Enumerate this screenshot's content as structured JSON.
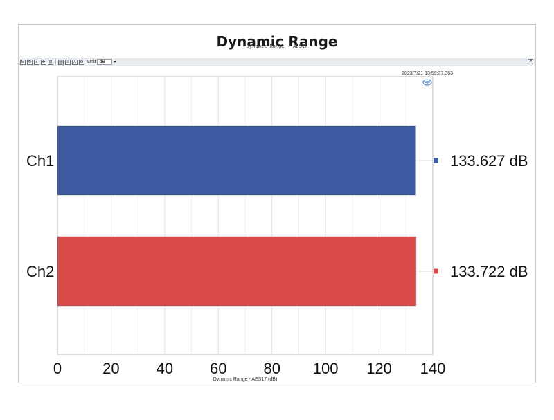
{
  "panel": {
    "title": "Dynamic Range"
  },
  "toolbar": {
    "unit_label": "Unit",
    "unit_value": "dB"
  },
  "chart_data": {
    "type": "bar",
    "orientation": "horizontal",
    "title": "Dynamic Range - AES17",
    "timestamp": "2023/7/21 13:59:37.363",
    "categories": [
      "Ch1",
      "Ch2"
    ],
    "values": [
      133.627,
      133.722
    ],
    "value_labels": [
      "133.627  dB",
      "133.722  dB"
    ],
    "colors": [
      "#3c5aa0",
      "#d94b4b"
    ],
    "xlabel": "Dynamic Range - AES17 (dB)",
    "xlim": [
      0,
      140
    ],
    "xticks": [
      0,
      20,
      40,
      60,
      80,
      100,
      120,
      140
    ],
    "grid": true,
    "legend": "right"
  }
}
